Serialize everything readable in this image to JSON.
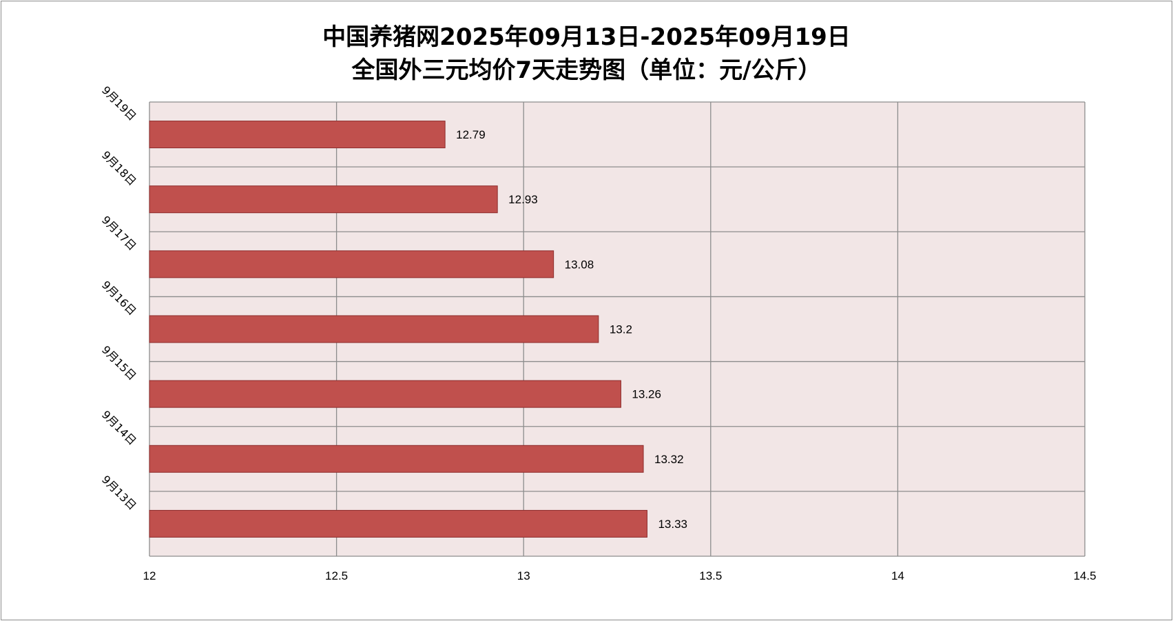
{
  "chart_data": {
    "type": "bar",
    "orientation": "horizontal",
    "title": "中国养猪网2025年09月13日-2025年09月19日",
    "subtitle": "全国外三元均价7天走势图（单位：元/公斤）",
    "categories": [
      "9月13日",
      "9月14日",
      "9月15日",
      "9月16日",
      "9月17日",
      "9月18日",
      "9月19日"
    ],
    "values": [
      13.33,
      13.32,
      13.26,
      13.2,
      13.08,
      12.93,
      12.79
    ],
    "data_labels": [
      "13.33",
      "13.32",
      "13.26",
      "13.2",
      "13.08",
      "12.93",
      "12.79"
    ],
    "xlim": [
      12,
      14.5
    ],
    "xticks": [
      12,
      12.5,
      13,
      13.5,
      14,
      14.5
    ],
    "xtick_labels": [
      "12",
      "12.5",
      "13",
      "13.5",
      "14",
      "14.5"
    ],
    "grid": true,
    "legend": "none",
    "colors": {
      "bar_fill": "#c0504d",
      "bar_stroke": "#8c2b2b",
      "plot_background": "#f2e6e6",
      "grid": "#8c8c8c"
    }
  }
}
